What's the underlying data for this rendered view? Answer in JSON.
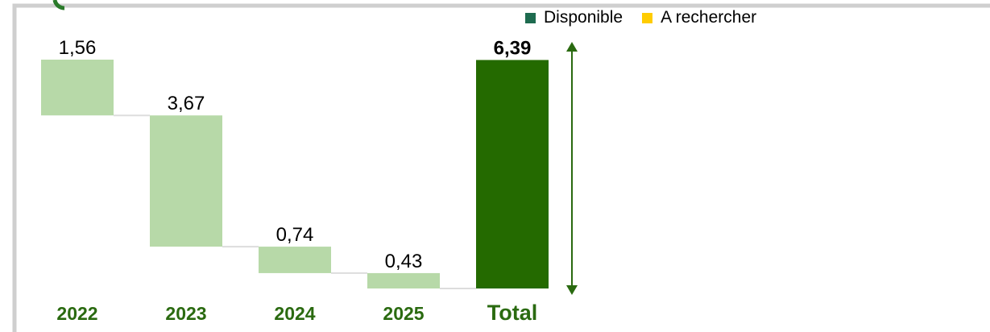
{
  "legend": {
    "items": [
      {
        "label": "Disponible",
        "color": "#1e6b4f"
      },
      {
        "label": "A rechercher",
        "color": "#ffcc00"
      }
    ]
  },
  "colors": {
    "step_bar": "#b7d9a8",
    "total_bar": "#246a00",
    "category_label": "#2a6a10",
    "arrow": "#2a6a10",
    "connector": "#dddddd",
    "frame": "#cfcfcf"
  },
  "chart_data": {
    "type": "bar",
    "subtype": "waterfall",
    "categories": [
      "2022",
      "2023",
      "2024",
      "2025",
      "Total"
    ],
    "values": [
      1.56,
      3.67,
      0.74,
      0.43,
      6.39
    ],
    "value_labels": [
      "1,56",
      "3,67",
      "0,74",
      "0,43",
      "6,39"
    ],
    "total_index": 4,
    "ylim": [
      0,
      6.4
    ],
    "legend_position": "top-right",
    "grid": false
  }
}
